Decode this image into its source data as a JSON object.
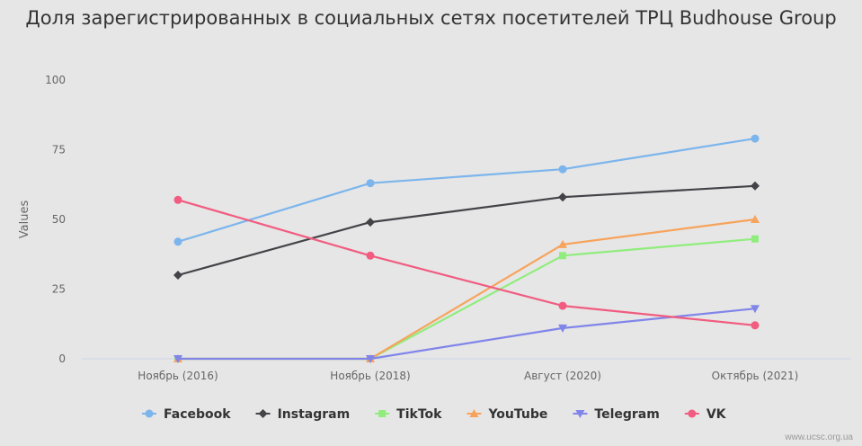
{
  "chart_data": {
    "type": "line",
    "title": "Доля зарегистрированных в социальных сетях посетителей ТРЦ Budhouse Group",
    "xlabel": "",
    "ylabel": "Values",
    "ylim": [
      0,
      100
    ],
    "yticks": [
      0,
      25,
      50,
      75,
      100
    ],
    "grid": true,
    "legend_position": "bottom",
    "categories": [
      "Ноябрь (2016)",
      "Ноябрь (2018)",
      "Август (2020)",
      "Октябрь (2021)"
    ],
    "series": [
      {
        "name": "Facebook",
        "color": "#7cb5ec",
        "marker": "circle",
        "values": [
          42,
          63,
          68,
          79
        ]
      },
      {
        "name": "Instagram",
        "color": "#434348",
        "marker": "diamond",
        "values": [
          30,
          49,
          58,
          62
        ]
      },
      {
        "name": "TikTok",
        "color": "#90ed7d",
        "marker": "square",
        "values": [
          0,
          0,
          37,
          43
        ]
      },
      {
        "name": "YouTube",
        "color": "#f7a35c",
        "marker": "triangle",
        "values": [
          0,
          0,
          41,
          50
        ]
      },
      {
        "name": "Telegram",
        "color": "#8085e9",
        "marker": "triangle-down",
        "values": [
          0,
          0,
          11,
          18
        ]
      },
      {
        "name": "VK",
        "color": "#f15c80",
        "marker": "circle",
        "values": [
          57,
          37,
          19,
          12
        ]
      }
    ]
  },
  "credit": "www.ucsc.org.ua"
}
